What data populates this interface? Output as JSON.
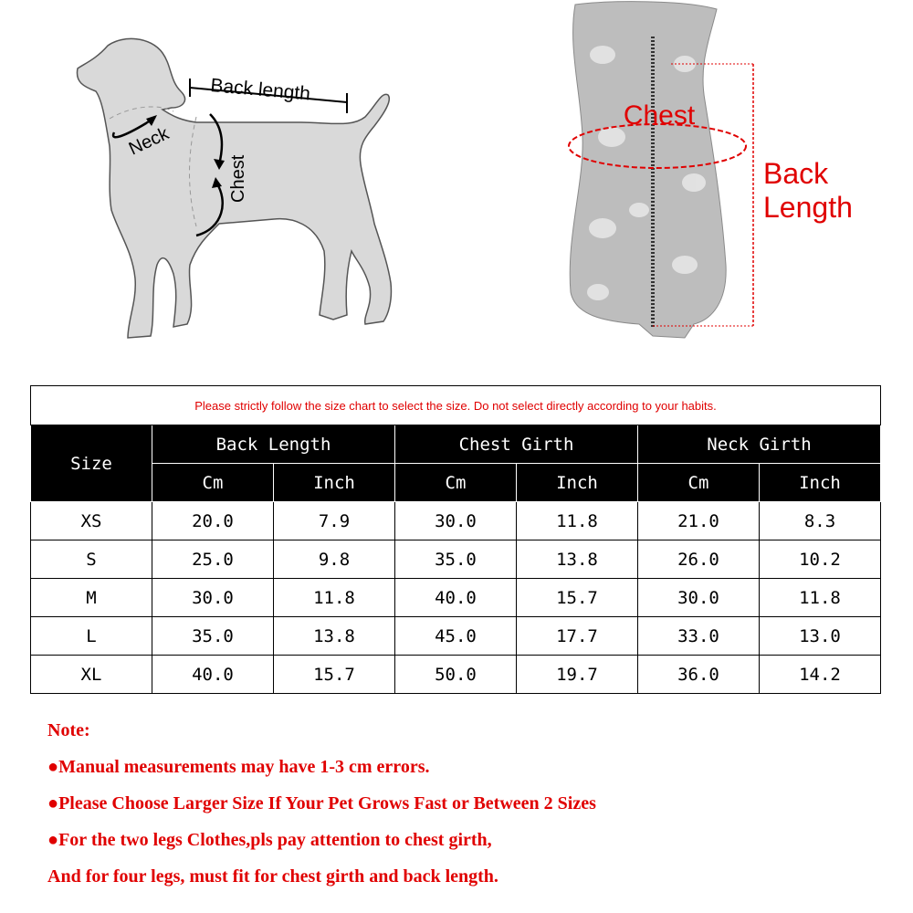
{
  "dog_diagram": {
    "back_length_label": "Back length",
    "neck_label": "Neck",
    "chest_label": "Chest"
  },
  "garment_diagram": {
    "chest_label": "Chest",
    "back_length_label_line1": "Back",
    "back_length_label_line2": "Length",
    "accent_color": "#e00000"
  },
  "size_table": {
    "notice": "Please strictly follow the size chart to select the size. Do not select directly according to your habits.",
    "size_header": "Size",
    "groups": [
      "Back Length",
      "Chest Girth",
      "Neck Girth"
    ],
    "units": [
      "Cm",
      "Inch",
      "Cm",
      "Inch",
      "Cm",
      "Inch"
    ],
    "rows": [
      {
        "size": "XS",
        "values": [
          "20.0",
          "7.9",
          "30.0",
          "11.8",
          "21.0",
          "8.3"
        ]
      },
      {
        "size": "S",
        "values": [
          "25.0",
          "9.8",
          "35.0",
          "13.8",
          "26.0",
          "10.2"
        ]
      },
      {
        "size": "M",
        "values": [
          "30.0",
          "11.8",
          "40.0",
          "15.7",
          "30.0",
          "11.8"
        ]
      },
      {
        "size": "L",
        "values": [
          "35.0",
          "13.8",
          "45.0",
          "17.7",
          "33.0",
          "13.0"
        ]
      },
      {
        "size": "XL",
        "values": [
          "40.0",
          "15.7",
          "50.0",
          "19.7",
          "36.0",
          "14.2"
        ]
      }
    ]
  },
  "notes": [
    "Note:",
    "●Manual measurements may have 1-3 cm errors.",
    "●Please Choose Larger Size If Your Pet Grows Fast or Between 2 Sizes",
    "●For the two legs Clothes,pls pay attention to chest girth,",
    "And for four legs, must fit for chest girth and back length."
  ]
}
